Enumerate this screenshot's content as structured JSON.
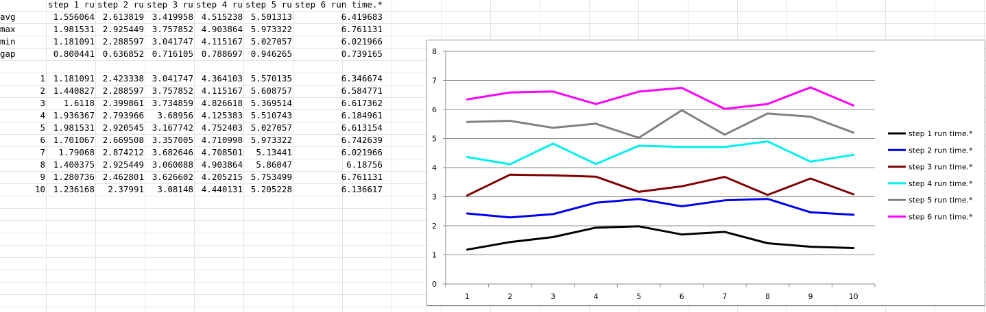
{
  "sheet": {
    "header": [
      "",
      "step 1 ru",
      "step 2 ru",
      "step 3 ru",
      "step 4 ru",
      "step 5 ru",
      "step 6 run time.*"
    ],
    "stats": [
      {
        "label": "avg",
        "values": [
          "1.556064",
          "2.613819",
          "3.419958",
          "4.515238",
          "5.501313",
          "6.419683"
        ]
      },
      {
        "label": "max",
        "values": [
          "1.981531",
          "2.925449",
          "3.757852",
          "4.903864",
          "5.973322",
          "6.761131"
        ]
      },
      {
        "label": "min",
        "values": [
          "1.181091",
          "2.288597",
          "3.041747",
          "4.115167",
          "5.027057",
          "6.021966"
        ]
      },
      {
        "label": "gap",
        "values": [
          "0.800441",
          "0.636852",
          "0.716105",
          "0.788697",
          "0.946265",
          "0.739165"
        ]
      }
    ],
    "rows": [
      {
        "index": "1",
        "values": [
          "1.181091",
          "2.423338",
          "3.041747",
          "4.364103",
          "5.570135",
          "6.346674"
        ]
      },
      {
        "index": "2",
        "values": [
          "1.440827",
          "2.288597",
          "3.757852",
          "4.115167",
          "5.608757",
          "6.584771"
        ]
      },
      {
        "index": "3",
        "values": [
          "1.6118",
          "2.399861",
          "3.734859",
          "4.826618",
          "5.369514",
          "6.617362"
        ]
      },
      {
        "index": "4",
        "values": [
          "1.936367",
          "2.793966",
          "3.68956",
          "4.125383",
          "5.510743",
          "6.184961"
        ]
      },
      {
        "index": "5",
        "values": [
          "1.981531",
          "2.920545",
          "3.167742",
          "4.752403",
          "5.027057",
          "6.613154"
        ]
      },
      {
        "index": "6",
        "values": [
          "1.701067",
          "2.669508",
          "3.357005",
          "4.710998",
          "5.973322",
          "6.742639"
        ]
      },
      {
        "index": "7",
        "values": [
          "1.79068",
          "2.874212",
          "3.682646",
          "4.708501",
          "5.13441",
          "6.021966"
        ]
      },
      {
        "index": "8",
        "values": [
          "1.400375",
          "2.925449",
          "3.060088",
          "4.903864",
          "5.86047",
          "6.18756"
        ]
      },
      {
        "index": "9",
        "values": [
          "1.280736",
          "2.462801",
          "3.626602",
          "4.205215",
          "5.753499",
          "6.761131"
        ]
      },
      {
        "index": "10",
        "values": [
          "1.236168",
          "2.37991",
          "3.08148",
          "4.440131",
          "5.205228",
          "6.136617"
        ]
      }
    ]
  },
  "chart_data": {
    "type": "line",
    "title": "",
    "xlabel": "",
    "ylabel": "",
    "x": [
      1,
      2,
      3,
      4,
      5,
      6,
      7,
      8,
      9,
      10
    ],
    "ylim": [
      0,
      8
    ],
    "yticks": [
      0,
      1,
      2,
      3,
      4,
      5,
      6,
      7,
      8
    ],
    "grid": "horizontal",
    "legend_position": "right",
    "series": [
      {
        "name": "step 1 run time.*",
        "color": "#000000",
        "values": [
          1.181091,
          1.440827,
          1.6118,
          1.936367,
          1.981531,
          1.701067,
          1.79068,
          1.400375,
          1.280736,
          1.236168
        ]
      },
      {
        "name": "step 2 run time.*",
        "color": "#0000ee",
        "values": [
          2.423338,
          2.288597,
          2.399861,
          2.793966,
          2.920545,
          2.669508,
          2.874212,
          2.925449,
          2.462801,
          2.37991
        ]
      },
      {
        "name": "step 3 run time.*",
        "color": "#800000",
        "values": [
          3.041747,
          3.757852,
          3.734859,
          3.68956,
          3.167742,
          3.357005,
          3.682646,
          3.060088,
          3.626602,
          3.08148
        ]
      },
      {
        "name": "step 4 run time.*",
        "color": "#00f0f0",
        "values": [
          4.364103,
          4.115167,
          4.826618,
          4.125383,
          4.752403,
          4.710998,
          4.708501,
          4.903864,
          4.205215,
          4.440131
        ]
      },
      {
        "name": "step 5 run time.*",
        "color": "#808080",
        "values": [
          5.570135,
          5.608757,
          5.369514,
          5.510743,
          5.027057,
          5.973322,
          5.13441,
          5.86047,
          5.753499,
          5.205228
        ]
      },
      {
        "name": "step 6 run time.*",
        "color": "#ff00ff",
        "values": [
          6.346674,
          6.584771,
          6.617362,
          6.184961,
          6.613154,
          6.742639,
          6.021966,
          6.18756,
          6.761131,
          6.136617
        ]
      }
    ]
  }
}
